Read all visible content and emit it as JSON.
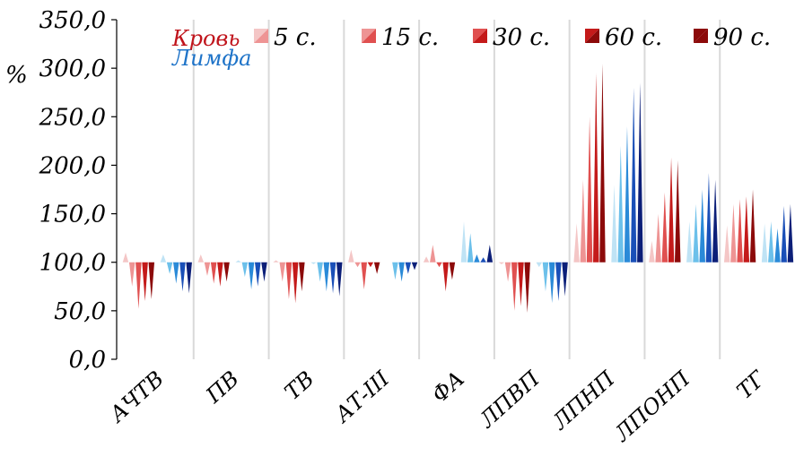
{
  "chart_data": {
    "type": "bar",
    "ylabel": "%",
    "ylim": [
      0,
      350
    ],
    "yticks": [
      "0,0",
      "50,0",
      "100,0",
      "150,0",
      "200,0",
      "250,0",
      "300,0",
      "350,0"
    ],
    "baseline": 100,
    "categories": [
      "АЧТВ",
      "ПВ",
      "ТВ",
      "АТ-III",
      "ФА",
      "ЛПВП",
      "ЛПНП",
      "ЛПОНП",
      "ТГ"
    ],
    "group_labels": {
      "blood": "Кровь",
      "lymph": "Лимфа"
    },
    "time_labels": [
      "5 с.",
      "15 с.",
      "30 с.",
      "60 с.",
      "90 с."
    ],
    "colors": {
      "blood": [
        "#f4c6c6",
        "#ee9494",
        "#e05050",
        "#c41a1a",
        "#8c0a0a"
      ],
      "lymph": [
        "#bfe3f5",
        "#6cc0ea",
        "#2a8ad8",
        "#1a4fb8",
        "#0c1f78"
      ]
    },
    "grid": false,
    "series": [
      {
        "name": "Кровь 5 с.",
        "group": "blood",
        "values": [
          110,
          108,
          102,
          113,
          106,
          98,
          140,
          122,
          138
        ]
      },
      {
        "name": "Кровь 15 с.",
        "group": "blood",
        "values": [
          75,
          86,
          80,
          95,
          118,
          80,
          185,
          150,
          160
        ]
      },
      {
        "name": "Кровь 30 с.",
        "group": "blood",
        "values": [
          52,
          78,
          62,
          72,
          95,
          50,
          250,
          172,
          165
        ]
      },
      {
        "name": "Кровь 60 с.",
        "group": "blood",
        "values": [
          60,
          75,
          58,
          95,
          70,
          55,
          295,
          208,
          168
        ]
      },
      {
        "name": "Кровь 90 с.",
        "group": "blood",
        "values": [
          62,
          80,
          70,
          88,
          82,
          48,
          305,
          205,
          175
        ]
      },
      {
        "name": "Лимфа 5 с.",
        "group": "lymph",
        "values": [
          108,
          102,
          98,
          100,
          142,
          95,
          180,
          142,
          140
        ]
      },
      {
        "name": "Лимфа 15 с.",
        "group": "lymph",
        "values": [
          88,
          85,
          80,
          82,
          130,
          70,
          220,
          160,
          142
        ]
      },
      {
        "name": "Лимфа 30 с.",
        "group": "lymph",
        "values": [
          78,
          72,
          70,
          80,
          108,
          58,
          240,
          175,
          135
        ]
      },
      {
        "name": "Лимфа 60 с.",
        "group": "lymph",
        "values": [
          70,
          75,
          68,
          88,
          105,
          60,
          280,
          192,
          158
        ]
      },
      {
        "name": "Лимфа 90 с.",
        "group": "lymph",
        "values": [
          68,
          80,
          65,
          92,
          118,
          65,
          285,
          185,
          160
        ]
      }
    ]
  }
}
